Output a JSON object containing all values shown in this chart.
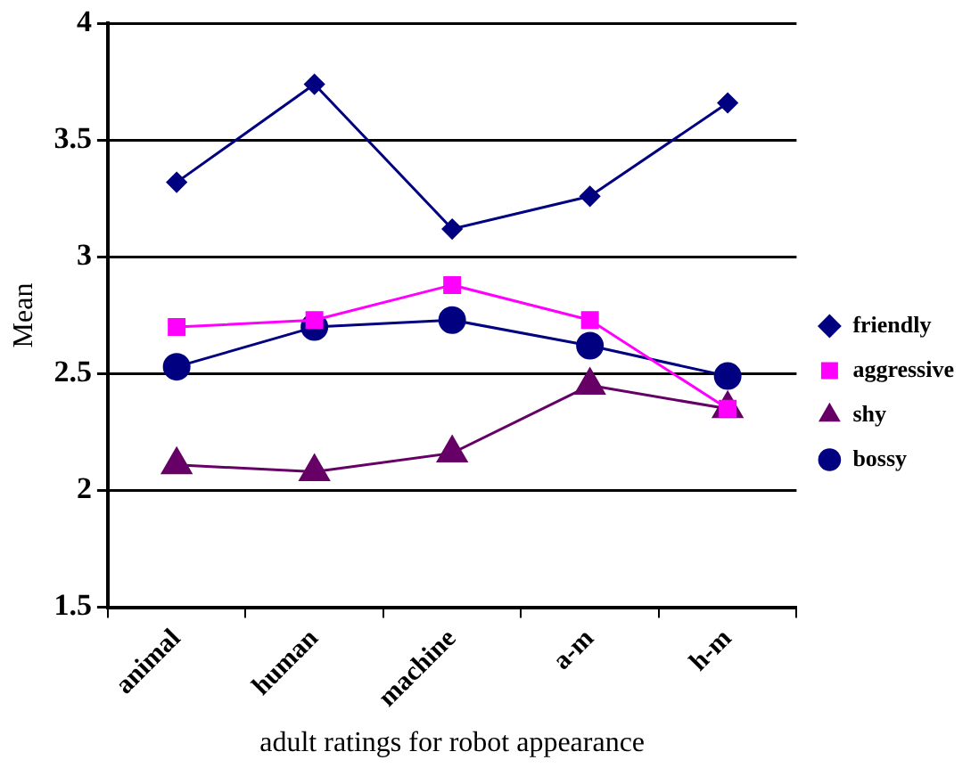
{
  "chart_data": {
    "type": "line",
    "xlabel": "adult ratings for robot appearance",
    "ylabel": "Mean",
    "categories": [
      "animal",
      "human",
      "machine",
      "a-m",
      "h-m"
    ],
    "series": [
      {
        "name": "friendly",
        "color": "#000080",
        "marker": "diamond",
        "values": [
          3.32,
          3.74,
          3.12,
          3.26,
          3.66
        ]
      },
      {
        "name": "aggressive",
        "color": "#ff00ff",
        "marker": "square",
        "values": [
          2.7,
          2.73,
          2.88,
          2.73,
          2.35
        ]
      },
      {
        "name": "shy",
        "color": "#660066",
        "marker": "triangle",
        "values": [
          2.11,
          2.08,
          2.16,
          2.45,
          2.35
        ]
      },
      {
        "name": "bossy",
        "color": "#000080",
        "marker": "circle",
        "values": [
          2.53,
          2.7,
          2.73,
          2.62,
          2.49
        ]
      }
    ],
    "ylim": [
      1.5,
      4
    ],
    "yticks": [
      1.5,
      2,
      2.5,
      3,
      3.5,
      4
    ],
    "grid": "y",
    "legend": "right"
  }
}
